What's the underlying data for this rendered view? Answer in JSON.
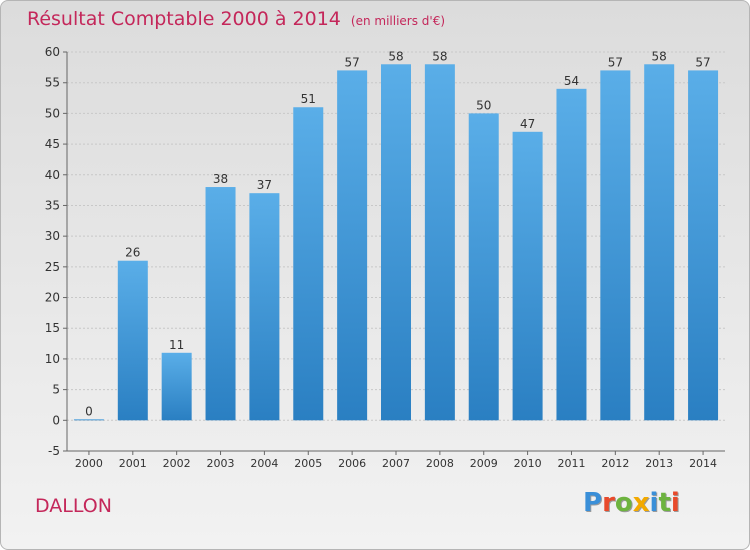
{
  "header": {
    "title": "Résultat Comptable 2000 à 2014",
    "unit": "(en milliers d'€)"
  },
  "footer": {
    "place": "DALLON",
    "logo_letters": [
      "P",
      "r",
      "o",
      "x",
      "i",
      "t",
      "i"
    ],
    "logo_colors": [
      "#3a8fd8",
      "#e84a2b",
      "#6db33f",
      "#f2a900",
      "#3a8fd8",
      "#6db33f",
      "#e84a2b"
    ]
  },
  "colors": {
    "bar_light": "#5aaee8",
    "bar_dark": "#2a7fc2",
    "grid": "#c8c8c8",
    "title": "#c4275a"
  },
  "chart_data": {
    "type": "bar",
    "categories": [
      "2000",
      "2001",
      "2002",
      "2003",
      "2004",
      "2005",
      "2006",
      "2007",
      "2008",
      "2009",
      "2010",
      "2011",
      "2012",
      "2013",
      "2014"
    ],
    "values": [
      0,
      26,
      11,
      38,
      37,
      51,
      57,
      58,
      58,
      50,
      47,
      54,
      57,
      58,
      57
    ],
    "ylim": [
      -5,
      60
    ],
    "yticks": [
      -5,
      0,
      5,
      10,
      15,
      20,
      25,
      30,
      35,
      40,
      45,
      50,
      55,
      60
    ],
    "grid": true,
    "xlabel": "",
    "ylabel": ""
  }
}
